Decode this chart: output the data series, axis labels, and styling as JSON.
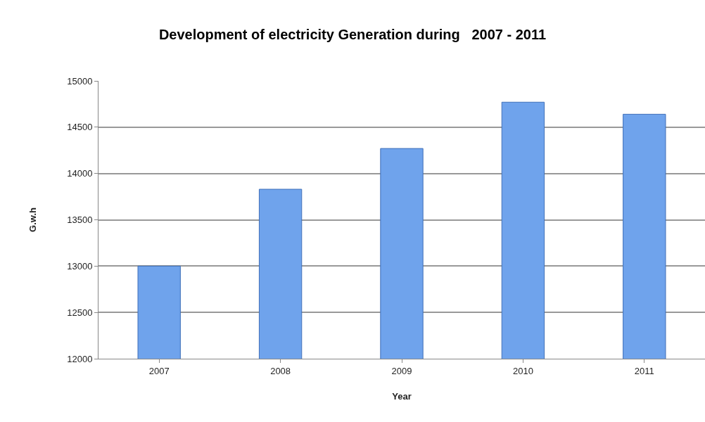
{
  "chart_data": {
    "type": "bar",
    "title": "Development of electricity Generation during   2007 - 2011",
    "xlabel": "Year",
    "ylabel": "G.w.h",
    "categories": [
      "2007",
      "2008",
      "2009",
      "2010",
      "2011"
    ],
    "values": [
      13000,
      13830,
      14270,
      14770,
      14640
    ],
    "color": "#6fa3ec",
    "ylim": [
      12000,
      15000
    ],
    "yticks": [
      12000,
      12500,
      13000,
      13500,
      14000,
      14500,
      15000
    ],
    "grid": "y"
  }
}
